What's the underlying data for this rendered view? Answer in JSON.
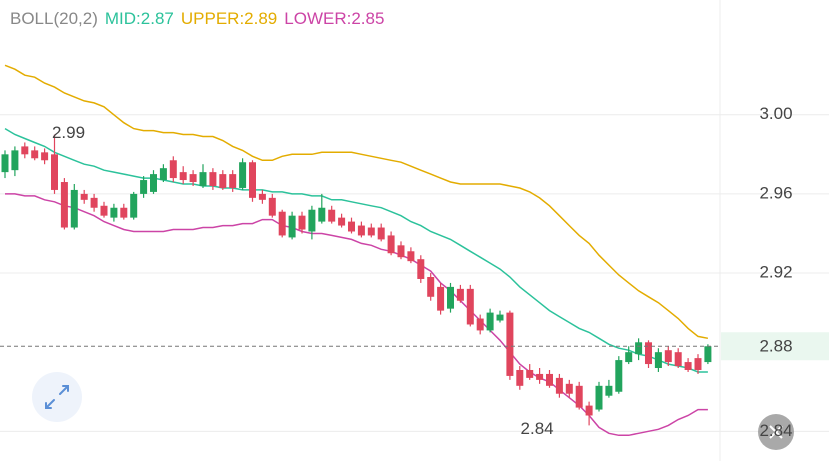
{
  "chart_data": {
    "type": "candlestick",
    "indicator": "BOLL(20,2)",
    "indicator_color": "#888888",
    "up_color": "#22a45d",
    "down_color": "#e0455d",
    "ylim": [
      2.825,
      3.058
    ],
    "yticks": [
      {
        "value": 3.0,
        "label": "3.00"
      },
      2.96,
      2.92,
      2.84
    ],
    "grid": true,
    "last_price": 2.883,
    "last_price_label": "2.88",
    "last_price_color": "#22a45d",
    "high_annotation": 2.99,
    "low_annotation": 2.84,
    "open": [
      2.971,
      2.972,
      2.984,
      2.982,
      2.981,
      2.98,
      2.966,
      2.943,
      2.96,
      2.958,
      2.954,
      2.948,
      2.953,
      2.948,
      2.96,
      2.961,
      2.967,
      2.977,
      2.971,
      2.97,
      2.964,
      2.971,
      2.97,
      2.97,
      2.963,
      2.976,
      2.96,
      2.958,
      2.951,
      2.938,
      2.949,
      2.941,
      2.946,
      2.952,
      2.948,
      2.946,
      2.944,
      2.943,
      2.943,
      2.939,
      2.934,
      2.931,
      2.927,
      2.918,
      2.913,
      2.902,
      2.912,
      2.912,
      2.897,
      2.891,
      2.896,
      2.9,
      2.871,
      2.871,
      2.869,
      2.869,
      2.867,
      2.864,
      2.863,
      2.853,
      2.851,
      2.858,
      2.86,
      2.875,
      2.879,
      2.885,
      2.872,
      2.881,
      2.88,
      2.875,
      2.877,
      2.875
    ],
    "high": [
      2.982,
      2.984,
      2.986,
      2.984,
      2.983,
      2.99,
      2.968,
      2.965,
      2.962,
      2.96,
      2.956,
      2.955,
      2.955,
      2.961,
      2.969,
      2.972,
      2.975,
      2.979,
      2.974,
      2.972,
      2.975,
      2.973,
      2.972,
      2.972,
      2.978,
      2.977,
      2.962,
      2.96,
      2.952,
      2.951,
      2.951,
      2.954,
      2.96,
      2.954,
      2.95,
      2.948,
      2.946,
      2.945,
      2.945,
      2.941,
      2.936,
      2.933,
      2.929,
      2.92,
      2.915,
      2.915,
      2.914,
      2.914,
      2.899,
      2.902,
      2.901,
      2.901,
      2.873,
      2.874,
      2.872,
      2.871,
      2.869,
      2.866,
      2.865,
      2.855,
      2.865,
      2.866,
      2.878,
      2.883,
      2.887,
      2.886,
      2.882,
      2.883,
      2.882,
      2.877,
      2.879,
      2.884
    ],
    "low": [
      2.968,
      2.969,
      2.978,
      2.977,
      2.975,
      2.96,
      2.942,
      2.942,
      2.955,
      2.951,
      2.948,
      2.946,
      2.947,
      2.947,
      2.958,
      2.96,
      2.966,
      2.966,
      2.965,
      2.964,
      2.963,
      2.962,
      2.962,
      2.961,
      2.962,
      2.956,
      2.955,
      2.948,
      2.938,
      2.937,
      2.94,
      2.937,
      2.945,
      2.945,
      2.943,
      2.94,
      2.938,
      2.938,
      2.936,
      2.929,
      2.927,
      2.925,
      2.915,
      2.906,
      2.899,
      2.9,
      2.905,
      2.893,
      2.889,
      2.89,
      2.895,
      2.866,
      2.861,
      2.866,
      2.864,
      2.862,
      2.857,
      2.857,
      2.851,
      2.843,
      2.85,
      2.857,
      2.859,
      2.874,
      2.876,
      2.872,
      2.87,
      2.873,
      2.872,
      2.87,
      2.869,
      2.874
    ],
    "close": [
      2.98,
      2.982,
      2.98,
      2.978,
      2.977,
      2.962,
      2.943,
      2.962,
      2.957,
      2.953,
      2.949,
      2.953,
      2.948,
      2.96,
      2.967,
      2.97,
      2.973,
      2.968,
      2.967,
      2.966,
      2.971,
      2.964,
      2.963,
      2.963,
      2.976,
      2.958,
      2.957,
      2.949,
      2.939,
      2.949,
      2.942,
      2.952,
      2.953,
      2.946,
      2.944,
      2.941,
      2.939,
      2.939,
      2.937,
      2.93,
      2.928,
      2.926,
      2.917,
      2.908,
      2.901,
      2.913,
      2.906,
      2.894,
      2.891,
      2.9,
      2.899,
      2.868,
      2.863,
      2.867,
      2.866,
      2.863,
      2.859,
      2.859,
      2.852,
      2.848,
      2.863,
      2.863,
      2.876,
      2.88,
      2.885,
      2.874,
      2.88,
      2.875,
      2.873,
      2.871,
      2.871,
      2.883
    ],
    "series": [
      {
        "name": "MID:2.87",
        "color": "#2cc29b",
        "values": [
          2.993,
          2.99,
          2.988,
          2.986,
          2.984,
          2.981,
          2.979,
          2.977,
          2.975,
          2.974,
          2.972,
          2.971,
          2.97,
          2.969,
          2.968,
          2.968,
          2.967,
          2.966,
          2.965,
          2.965,
          2.964,
          2.964,
          2.963,
          2.963,
          2.962,
          2.962,
          2.962,
          2.961,
          2.961,
          2.96,
          2.96,
          2.959,
          2.959,
          2.957,
          2.957,
          2.956,
          2.955,
          2.954,
          2.953,
          2.951,
          2.949,
          2.946,
          2.944,
          2.941,
          2.939,
          2.937,
          2.934,
          2.931,
          2.928,
          2.925,
          2.922,
          2.918,
          2.913,
          2.909,
          2.905,
          2.901,
          2.898,
          2.895,
          2.892,
          2.89,
          2.887,
          2.884,
          2.882,
          2.881,
          2.879,
          2.878,
          2.876,
          2.874,
          2.873,
          2.872,
          2.87,
          2.87
        ]
      },
      {
        "name": "UPPER:2.89",
        "color": "#e3ac00",
        "values": [
          3.025,
          3.023,
          3.02,
          3.019,
          3.016,
          3.014,
          3.011,
          3.009,
          3.007,
          3.006,
          3.004,
          3.0,
          2.996,
          2.993,
          2.992,
          2.992,
          2.991,
          2.991,
          2.99,
          2.99,
          2.989,
          2.989,
          2.987,
          2.984,
          2.982,
          2.979,
          2.977,
          2.977,
          2.979,
          2.98,
          2.98,
          2.98,
          2.981,
          2.981,
          2.981,
          2.981,
          2.98,
          2.979,
          2.978,
          2.977,
          2.976,
          2.974,
          2.972,
          2.97,
          2.968,
          2.966,
          2.965,
          2.965,
          2.965,
          2.965,
          2.965,
          2.964,
          2.963,
          2.961,
          2.958,
          2.954,
          2.949,
          2.944,
          2.939,
          2.935,
          2.929,
          2.924,
          2.919,
          2.915,
          2.911,
          2.908,
          2.905,
          2.901,
          2.897,
          2.892,
          2.888,
          2.887
        ]
      },
      {
        "name": "LOWER:2.85",
        "color": "#cc44a6",
        "values": [
          2.96,
          2.96,
          2.959,
          2.959,
          2.957,
          2.956,
          2.954,
          2.953,
          2.951,
          2.949,
          2.946,
          2.944,
          2.942,
          2.941,
          2.941,
          2.941,
          2.941,
          2.942,
          2.942,
          2.942,
          2.943,
          2.943,
          2.944,
          2.944,
          2.945,
          2.945,
          2.947,
          2.947,
          2.944,
          2.943,
          2.941,
          2.94,
          2.94,
          2.939,
          2.938,
          2.937,
          2.935,
          2.934,
          2.932,
          2.931,
          2.929,
          2.927,
          2.924,
          2.921,
          2.915,
          2.911,
          2.906,
          2.901,
          2.896,
          2.891,
          2.886,
          2.88,
          2.874,
          2.87,
          2.867,
          2.865,
          2.861,
          2.857,
          2.853,
          2.848,
          2.842,
          2.839,
          2.838,
          2.838,
          2.839,
          2.84,
          2.841,
          2.843,
          2.846,
          2.848,
          2.851,
          2.851
        ]
      }
    ]
  }
}
